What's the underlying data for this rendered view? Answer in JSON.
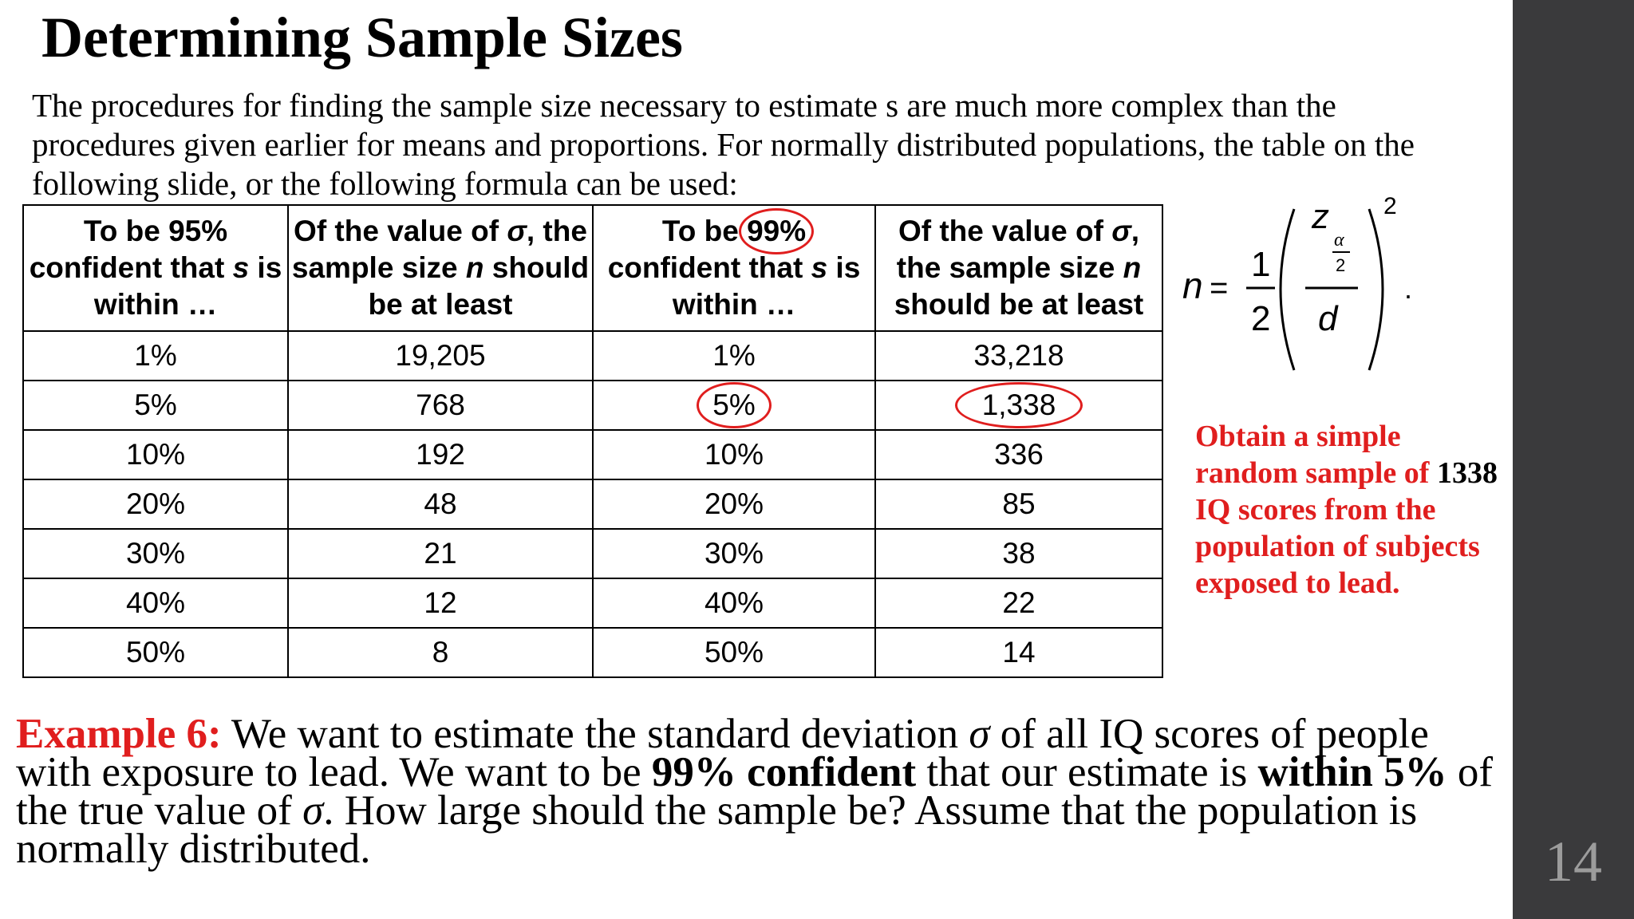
{
  "slide": {
    "title": "Determining Sample Sizes",
    "intro": "The procedures for finding the sample size necessary to estimate s are much more complex than the procedures given earlier for means and proportions. For normally distributed populations, the table on the following slide, or the following formula can be used:",
    "page_number": "14"
  },
  "table": {
    "headers": [
      {
        "pre": "To be 95% confident that ",
        "var": "s",
        "post": " is within …"
      },
      {
        "pre": "Of the value of ",
        "var": "σ",
        "mid": ", the sample size ",
        "var2": "n",
        "post": " should be at least"
      },
      {
        "pre": "To be ",
        "hi": "99%",
        "post": " confident that ",
        "var": "s",
        "post2": " is within …"
      },
      {
        "pre": "Of the value of ",
        "var": "σ",
        "mid": ", the sample size ",
        "var2": "n",
        "post": " should be at least"
      }
    ],
    "rows": [
      [
        "1%",
        "19,205",
        "1%",
        "33,218"
      ],
      [
        "5%",
        "768",
        "5%",
        "1,338"
      ],
      [
        "10%",
        "192",
        "10%",
        "336"
      ],
      [
        "20%",
        "48",
        "20%",
        "85"
      ],
      [
        "30%",
        "21",
        "30%",
        "38"
      ],
      [
        "40%",
        "12",
        "40%",
        "22"
      ],
      [
        "50%",
        "8",
        "50%",
        "14"
      ]
    ],
    "highlight_color": "#e01e1e"
  },
  "formula": {
    "lhs": "n",
    "eq": "=",
    "num": "1",
    "den": "2",
    "z": "z",
    "alpha": "α",
    "two": "2",
    "d": "d",
    "exp": "2",
    "dot": "."
  },
  "note": {
    "line1": "Obtain a simple random sample of ",
    "number": "1338",
    "line2": " IQ scores from the population of subjects exposed to lead."
  },
  "example": {
    "label": "Example 6:",
    "t1": " We want to estimate the standard deviation ",
    "sigma1": "σ",
    "t2": " of all IQ scores of people with exposure to lead. We want to be ",
    "b1": "99% confident",
    "t3": " that our estimate is ",
    "b2": "within 5%",
    "t4": " of the true value of ",
    "sigma2": "σ",
    "t5": ". How large should the sample be? Assume that the population is normally distributed."
  }
}
